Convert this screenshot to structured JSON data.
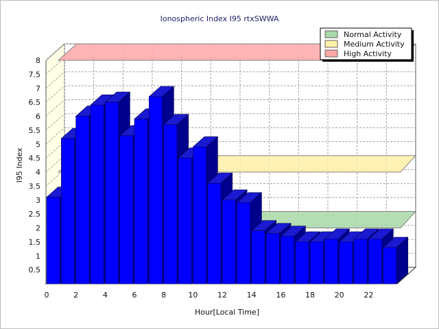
{
  "chart_data": {
    "type": "bar",
    "title": "Ionospheric Index I95 rtxSWWA",
    "xlabel": "Hour[Local Time]",
    "ylabel": "I95 Index",
    "ylim": [
      0,
      8
    ],
    "yticks": [
      "0.5",
      "1",
      "1.5",
      "2",
      "2.5",
      "3",
      "3.5",
      "4",
      "4.5",
      "5",
      "5.5",
      "6",
      "6.5",
      "7",
      "7.5",
      "8"
    ],
    "xlim": [
      0,
      24
    ],
    "xticks": [
      "0",
      "2",
      "4",
      "6",
      "8",
      "10",
      "12",
      "14",
      "16",
      "18",
      "20",
      "22"
    ],
    "grid": true,
    "legend_position": "top-right",
    "x": [
      0,
      1,
      2,
      3,
      4,
      5,
      6,
      7,
      8,
      9,
      10,
      11,
      12,
      13,
      14,
      15,
      16,
      17,
      18,
      19,
      20,
      21,
      22,
      23
    ],
    "series": [
      {
        "color": "#0000ff",
        "values": [
          3.1,
          5.2,
          6.0,
          6.4,
          6.5,
          5.3,
          5.9,
          6.7,
          5.7,
          4.5,
          4.9,
          3.6,
          3.0,
          2.9,
          1.9,
          1.8,
          1.7,
          1.5,
          1.5,
          1.6,
          1.5,
          1.6,
          1.6,
          1.3
        ]
      }
    ],
    "bands": [
      {
        "name": "Normal Activity",
        "value": 2.0,
        "color": "#a8d8a8"
      },
      {
        "name": "Medium Activity",
        "value": 4.0,
        "color": "#fff0a8"
      },
      {
        "name": "High Activity",
        "value": 8.0,
        "color": "#ffa8a8"
      }
    ]
  },
  "colors": {
    "bar_front": "#0000ff",
    "bar_top": "#1a1ad0",
    "bar_side": "#00008c",
    "back_wall": "#ffffff",
    "left_wall": "#fffee6",
    "floor": "#ffffff",
    "grid": "#a0a0a0"
  }
}
